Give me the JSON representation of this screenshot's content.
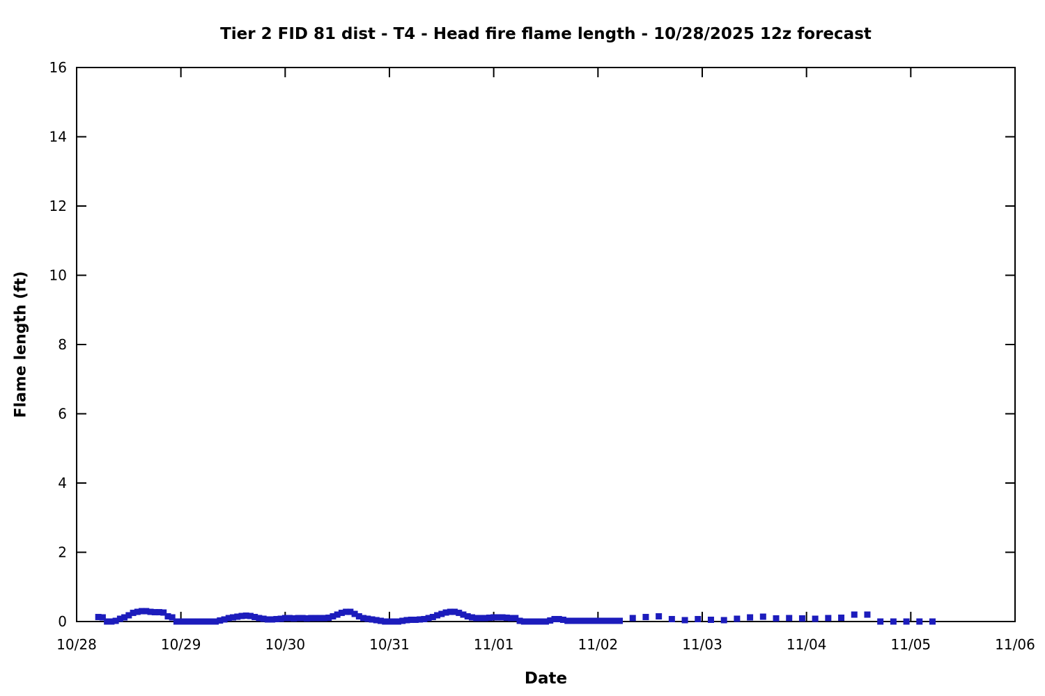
{
  "page": {
    "background": "#ffffff",
    "text_color": "#000000"
  },
  "chart_data": {
    "type": "scatter",
    "title": "Tier 2 FID 81 dist - T4 - Head fire flame length - 10/28/2025 12z forecast",
    "xlabel": "Date",
    "ylabel": "Flame length (ft)",
    "x_tick_labels": [
      "10/28",
      "10/29",
      "10/30",
      "10/31",
      "11/01",
      "11/02",
      "11/03",
      "11/04",
      "11/05",
      "11/06"
    ],
    "y_tick_labels": [
      "0",
      "2",
      "4",
      "6",
      "8",
      "10",
      "12",
      "14",
      "16"
    ],
    "y_ticks": [
      0,
      2,
      4,
      6,
      8,
      10,
      12,
      14,
      16
    ],
    "ylim": [
      0,
      16
    ],
    "xlim_days": [
      0,
      9
    ],
    "grid": false,
    "legend": "none",
    "box_border": true,
    "ticks_direction": "in",
    "ticks_mirrored": true,
    "axis_color": "#000000",
    "marker": "square",
    "marker_color": "#1c1cbc",
    "marker_size_px": 9,
    "series": [
      {
        "name": "Head fire flame length (ft)",
        "x_unit": "hours after 10/28 00:00",
        "points": [
          [
            5,
            0.13
          ],
          [
            6,
            0.12
          ],
          [
            7,
            0
          ],
          [
            8,
            0
          ],
          [
            9,
            0.02
          ],
          [
            10,
            0.08
          ],
          [
            11,
            0.12
          ],
          [
            12,
            0.18
          ],
          [
            13,
            0.25
          ],
          [
            14,
            0.28
          ],
          [
            15,
            0.3
          ],
          [
            16,
            0.3
          ],
          [
            17,
            0.28
          ],
          [
            18,
            0.27
          ],
          [
            19,
            0.27
          ],
          [
            20,
            0.26
          ],
          [
            21,
            0.15
          ],
          [
            22,
            0.12
          ],
          [
            23,
            0
          ],
          [
            24,
            0
          ],
          [
            25,
            0
          ],
          [
            26,
            0
          ],
          [
            27,
            0
          ],
          [
            28,
            0
          ],
          [
            29,
            0
          ],
          [
            30,
            0
          ],
          [
            31,
            0
          ],
          [
            32,
            0
          ],
          [
            33,
            0.03
          ],
          [
            34,
            0.06
          ],
          [
            35,
            0.1
          ],
          [
            36,
            0.12
          ],
          [
            37,
            0.14
          ],
          [
            38,
            0.16
          ],
          [
            39,
            0.17
          ],
          [
            40,
            0.16
          ],
          [
            41,
            0.13
          ],
          [
            42,
            0.1
          ],
          [
            43,
            0.08
          ],
          [
            44,
            0.06
          ],
          [
            45,
            0.06
          ],
          [
            46,
            0.07
          ],
          [
            47,
            0.08
          ],
          [
            48,
            0.1
          ],
          [
            49,
            0.1
          ],
          [
            50,
            0.09
          ],
          [
            51,
            0.1
          ],
          [
            52,
            0.1
          ],
          [
            53,
            0.09
          ],
          [
            54,
            0.1
          ],
          [
            55,
            0.1
          ],
          [
            56,
            0.1
          ],
          [
            57,
            0.1
          ],
          [
            58,
            0.11
          ],
          [
            59,
            0.15
          ],
          [
            60,
            0.2
          ],
          [
            61,
            0.25
          ],
          [
            62,
            0.28
          ],
          [
            63,
            0.28
          ],
          [
            64,
            0.22
          ],
          [
            65,
            0.15
          ],
          [
            66,
            0.1
          ],
          [
            67,
            0.08
          ],
          [
            68,
            0.06
          ],
          [
            69,
            0.04
          ],
          [
            70,
            0.02
          ],
          [
            71,
            0
          ],
          [
            72,
            0
          ],
          [
            73,
            0
          ],
          [
            74,
            0
          ],
          [
            75,
            0.02
          ],
          [
            76,
            0.04
          ],
          [
            77,
            0.05
          ],
          [
            78,
            0.05
          ],
          [
            79,
            0.06
          ],
          [
            80,
            0.07
          ],
          [
            81,
            0.1
          ],
          [
            82,
            0.13
          ],
          [
            83,
            0.18
          ],
          [
            84,
            0.22
          ],
          [
            85,
            0.26
          ],
          [
            86,
            0.28
          ],
          [
            87,
            0.28
          ],
          [
            88,
            0.25
          ],
          [
            89,
            0.2
          ],
          [
            90,
            0.15
          ],
          [
            91,
            0.12
          ],
          [
            92,
            0.1
          ],
          [
            93,
            0.1
          ],
          [
            94,
            0.1
          ],
          [
            95,
            0.11
          ],
          [
            96,
            0.12
          ],
          [
            97,
            0.12
          ],
          [
            98,
            0.12
          ],
          [
            99,
            0.11
          ],
          [
            100,
            0.1
          ],
          [
            101,
            0.1
          ],
          [
            102,
            0.02
          ],
          [
            103,
            0
          ],
          [
            104,
            0
          ],
          [
            105,
            0
          ],
          [
            106,
            0
          ],
          [
            107,
            0
          ],
          [
            108,
            0
          ],
          [
            109,
            0.03
          ],
          [
            110,
            0.07
          ],
          [
            111,
            0.07
          ],
          [
            112,
            0.05
          ],
          [
            113,
            0.02
          ],
          [
            114,
            0.02
          ],
          [
            115,
            0.02
          ],
          [
            116,
            0.02
          ],
          [
            117,
            0.02
          ],
          [
            118,
            0.02
          ],
          [
            119,
            0.02
          ],
          [
            120,
            0.02
          ],
          [
            121,
            0.02
          ],
          [
            122,
            0.02
          ],
          [
            123,
            0.02
          ],
          [
            124,
            0.02
          ],
          [
            125,
            0.02
          ],
          [
            128,
            0.1
          ],
          [
            131,
            0.13
          ],
          [
            134,
            0.15
          ],
          [
            137,
            0.07
          ],
          [
            140,
            0.04
          ],
          [
            143,
            0.07
          ],
          [
            146,
            0.05
          ],
          [
            149,
            0.04
          ],
          [
            152,
            0.08
          ],
          [
            155,
            0.12
          ],
          [
            158,
            0.14
          ],
          [
            161,
            0.09
          ],
          [
            164,
            0.1
          ],
          [
            167,
            0.09
          ],
          [
            170,
            0.08
          ],
          [
            173,
            0.1
          ],
          [
            176,
            0.11
          ],
          [
            179,
            0.2
          ],
          [
            182,
            0.2
          ],
          [
            185,
            0
          ],
          [
            188,
            0
          ],
          [
            191,
            0
          ],
          [
            194,
            0
          ],
          [
            197,
            0
          ]
        ]
      }
    ]
  }
}
